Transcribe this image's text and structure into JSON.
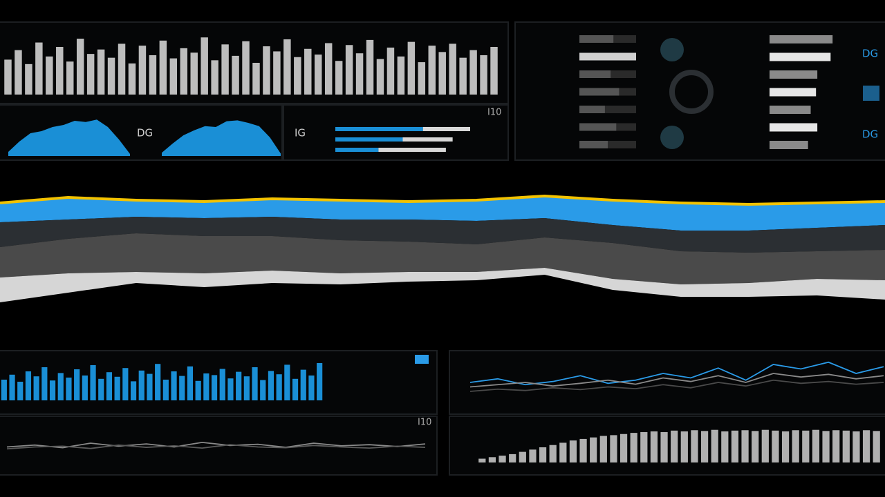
{
  "labels": {
    "area_mid": "DG",
    "progress_left": "IG",
    "progress_corner": "I10",
    "right_top": "DG",
    "right_bottom": "DG",
    "lines_corner": "I10"
  },
  "waveform": {
    "ylim": [
      0,
      100
    ],
    "color": "#bdbdbd",
    "values": [
      55,
      70,
      48,
      82,
      60,
      75,
      52,
      88,
      64,
      71,
      58,
      80,
      49,
      77,
      62,
      85,
      57,
      73,
      66,
      90,
      54,
      79,
      61,
      84,
      50,
      76,
      68,
      87,
      59,
      72,
      63,
      81,
      53,
      78,
      65,
      86,
      56,
      74,
      60,
      83,
      51,
      77,
      67,
      80,
      58,
      70,
      62,
      75
    ]
  },
  "mini_areas": {
    "ylim": [
      0,
      100
    ],
    "color": "#1a8fd6",
    "series": [
      [
        10,
        35,
        55,
        60,
        70,
        75,
        85,
        82,
        88,
        70,
        40,
        5
      ],
      [
        8,
        30,
        50,
        62,
        72,
        70,
        84,
        86,
        80,
        72,
        45,
        6
      ]
    ]
  },
  "progress": {
    "max": 100,
    "colors": [
      "#1a8fd6",
      "#d8d8d8"
    ],
    "rows": [
      [
        65,
        35
      ],
      [
        50,
        37
      ],
      [
        32,
        50
      ]
    ]
  },
  "side_bars": {
    "max": 100,
    "left": [
      60,
      100,
      55,
      70,
      45,
      65,
      50
    ],
    "left_colors": [
      "#555555",
      "#d0d0d0",
      "#555555",
      "#555555",
      "#555555",
      "#555555",
      "#555555"
    ],
    "right": [
      95,
      92,
      72,
      70,
      62,
      72,
      58
    ],
    "right_colors": [
      "#8a8a8a",
      "#e6e6e6",
      "#8a8a8a",
      "#e6e6e6",
      "#8a8a8a",
      "#e6e6e6",
      "#8a8a8a"
    ]
  },
  "stream": {
    "ylim": [
      0,
      100
    ],
    "top_color": "#f2c200",
    "top": [
      88,
      92,
      90,
      89,
      91,
      90,
      89,
      90,
      93,
      90,
      88,
      87,
      88,
      89
    ],
    "layers": [
      {
        "color": "#2a9be8",
        "values": [
          14,
          16,
          12,
          12,
          13,
          14,
          13,
          15,
          16,
          18,
          20,
          19,
          18,
          17
        ]
      },
      {
        "color": "#2b2f33",
        "values": [
          18,
          14,
          12,
          13,
          14,
          15,
          16,
          17,
          14,
          13,
          15,
          16,
          17,
          18
        ]
      },
      {
        "color": "#4a4a4a",
        "values": [
          22,
          25,
          28,
          27,
          25,
          24,
          22,
          20,
          22,
          26,
          24,
          22,
          20,
          22
        ]
      },
      {
        "color": "#d6d6d6",
        "values": [
          18,
          14,
          8,
          10,
          9,
          8,
          7,
          6,
          5,
          8,
          9,
          10,
          12,
          14
        ]
      }
    ]
  },
  "blue_bars": {
    "ylim": [
      0,
      100
    ],
    "color": "#1a8fd6",
    "values": [
      50,
      62,
      45,
      70,
      58,
      80,
      48,
      66,
      55,
      75,
      60,
      85,
      52,
      68,
      57,
      78,
      46,
      72,
      64,
      88,
      50,
      70,
      59,
      82,
      47,
      65,
      61,
      76,
      53,
      69,
      58,
      80,
      49,
      71,
      63,
      86,
      52,
      74,
      60,
      90
    ]
  },
  "thin_lines": {
    "ylim": [
      0,
      100
    ],
    "series": [
      {
        "color": "#8a8a8a",
        "values": [
          50,
          55,
          48,
          60,
          52,
          58,
          50,
          62,
          54,
          57,
          49,
          60,
          53,
          56,
          51,
          58
        ]
      },
      {
        "color": "#5a5a5a",
        "values": [
          45,
          50,
          52,
          46,
          55,
          49,
          53,
          47,
          56,
          50,
          48,
          54,
          50,
          47,
          52,
          49
        ]
      }
    ]
  },
  "trend_lines": {
    "ylim": [
      0,
      100
    ],
    "series": [
      {
        "color": "#2a9be8",
        "values": [
          40,
          48,
          35,
          42,
          55,
          38,
          45,
          60,
          50,
          72,
          45,
          80,
          70,
          85,
          60,
          75
        ]
      },
      {
        "color": "#8a8a8a",
        "values": [
          30,
          35,
          40,
          32,
          38,
          45,
          36,
          50,
          42,
          55,
          40,
          60,
          52,
          58,
          48,
          55
        ]
      },
      {
        "color": "#4a4a4a",
        "values": [
          20,
          25,
          22,
          28,
          24,
          30,
          26,
          35,
          28,
          40,
          32,
          45,
          38,
          42,
          36,
          40
        ]
      }
    ]
  },
  "gray_bars": {
    "ylim": [
      0,
      100
    ],
    "color": "#b0b0b0",
    "values": [
      10,
      14,
      18,
      22,
      28,
      34,
      40,
      46,
      52,
      58,
      62,
      66,
      70,
      72,
      75,
      78,
      80,
      82,
      80,
      84,
      82,
      85,
      83,
      86,
      82,
      84,
      85,
      83,
      86,
      84,
      82,
      85,
      84,
      86,
      83,
      85,
      84,
      82,
      85,
      83
    ]
  }
}
